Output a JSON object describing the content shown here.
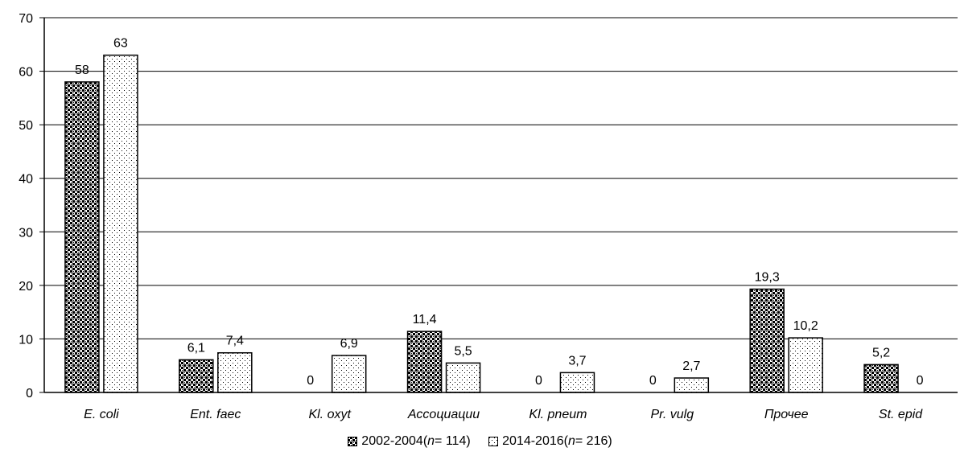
{
  "chart_data": {
    "type": "bar",
    "categories": [
      "E. coli",
      "Ent. faec",
      "Kl. oxyt",
      "Ассоциации",
      "Kl. pneum",
      "Pr. vulg",
      "Прочее",
      "St. epid"
    ],
    "series": [
      {
        "name": "2002-2004 (n = 114)",
        "legend": {
          "years": "2002-2004",
          "open": " (",
          "n_symbol": "n",
          "rest": " = 114)"
        },
        "values": [
          58,
          6.1,
          0,
          11.4,
          0,
          0,
          19.3,
          5.2
        ],
        "labels": [
          "58",
          "6,1",
          "0",
          "11,4",
          "0",
          "0",
          "19,3",
          "5,2"
        ],
        "pattern": "dark-checker"
      },
      {
        "name": "2014-2016 (n = 216)",
        "legend": {
          "years": "2014-2016",
          "open": " (",
          "n_symbol": "n",
          "rest": " = 216)"
        },
        "values": [
          63,
          7.4,
          6.9,
          5.5,
          3.7,
          2.7,
          10.2,
          0
        ],
        "labels": [
          "63",
          "7,4",
          "6,9",
          "5,5",
          "3,7",
          "2,7",
          "10,2",
          "0"
        ],
        "pattern": "light-dotted"
      }
    ],
    "y_ticks": [
      "0",
      "10",
      "20",
      "30",
      "40",
      "50",
      "60",
      "70"
    ],
    "ylim": [
      0,
      70
    ],
    "title": "",
    "xlabel": "",
    "ylabel": "",
    "grid": true,
    "legend_position": "bottom-center"
  }
}
